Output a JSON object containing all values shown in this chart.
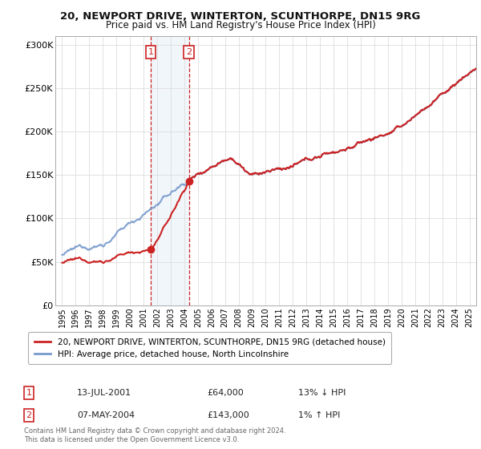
{
  "title": "20, NEWPORT DRIVE, WINTERTON, SCUNTHORPE, DN15 9RG",
  "subtitle": "Price paid vs. HM Land Registry's House Price Index (HPI)",
  "ylim": [
    0,
    310000
  ],
  "yticks": [
    0,
    50000,
    100000,
    150000,
    200000,
    250000,
    300000
  ],
  "ytick_labels": [
    "£0",
    "£50K",
    "£100K",
    "£150K",
    "£200K",
    "£250K",
    "£300K"
  ],
  "background_color": "#ffffff",
  "transaction1": {
    "date_num": 2001.53,
    "price": 64000,
    "label": "1"
  },
  "transaction2": {
    "date_num": 2004.35,
    "price": 143000,
    "label": "2"
  },
  "highlight_xmin": 2001.53,
  "highlight_xmax": 2004.35,
  "legend_entries": [
    {
      "label": "20, NEWPORT DRIVE, WINTERTON, SCUNTHORPE, DN15 9RG (detached house)",
      "color": "#cc2222",
      "lw": 1.5
    },
    {
      "label": "HPI: Average price, detached house, North Lincolnshire",
      "color": "#7799cc",
      "lw": 1.5
    }
  ],
  "table_rows": [
    {
      "num": "1",
      "date": "13-JUL-2001",
      "price": "£64,000",
      "pct": "13% ↓ HPI"
    },
    {
      "num": "2",
      "date": "07-MAY-2004",
      "price": "£143,000",
      "pct": "1% ↑ HPI"
    }
  ],
  "footnote": "Contains HM Land Registry data © Crown copyright and database right 2024.\nThis data is licensed under the Open Government Licence v3.0.",
  "grid_color": "#dddddd",
  "dashed_line_color": "#cc2222",
  "highlight_color": "#d8e8f5",
  "xlim": [
    1994.5,
    2025.5
  ]
}
